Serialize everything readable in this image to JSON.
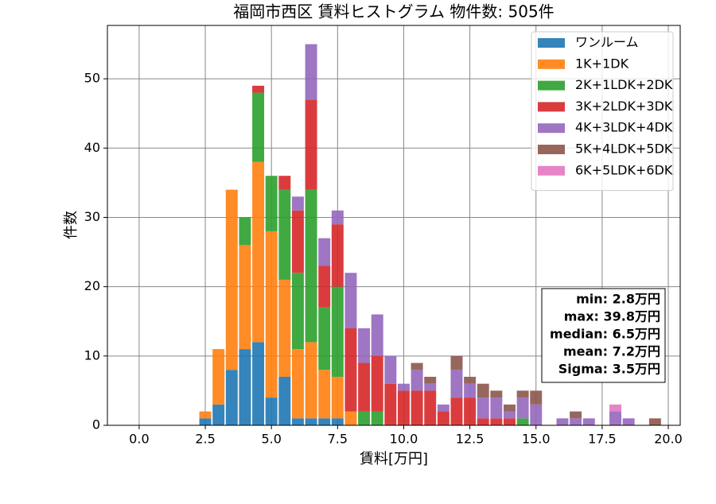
{
  "chart_data": {
    "type": "histogram",
    "stacked": true,
    "title": "福岡市西区 賃料ヒストグラム 物件数: 505件",
    "x_label": "賃料[万円]",
    "y_label": "件数",
    "bins": [
      2.25,
      2.75,
      3.25,
      3.75,
      4.25,
      4.75,
      5.25,
      5.75,
      6.25,
      6.75,
      7.25,
      7.75,
      8.25,
      8.75,
      9.25,
      9.75,
      10.25,
      10.75,
      11.25,
      11.75,
      12.25,
      12.75,
      13.25,
      13.75,
      14.25,
      14.75,
      15.25,
      15.75,
      16.25,
      16.75,
      17.25,
      17.75,
      18.25,
      18.75,
      19.25,
      19.75
    ],
    "series": [
      {
        "name": "ワンルーム",
        "color": "#1f77b4",
        "values": [
          1,
          3,
          8,
          11,
          12,
          4,
          7,
          1,
          1,
          1,
          1,
          0,
          0,
          0,
          0,
          0,
          0,
          0,
          0,
          0,
          0,
          0,
          0,
          0,
          0,
          0,
          0,
          0,
          0,
          0,
          0,
          0,
          0,
          0,
          0
        ]
      },
      {
        "name": "1K+1DK",
        "color": "#ff7f0e",
        "values": [
          1,
          8,
          26,
          15,
          26,
          24,
          14,
          10,
          11,
          7,
          6,
          2,
          0,
          0,
          0,
          0,
          0,
          0,
          0,
          0,
          0,
          0,
          0,
          0,
          0,
          0,
          0,
          0,
          0,
          0,
          0,
          0,
          0,
          0,
          0
        ]
      },
      {
        "name": "2K+1LDK+2DK",
        "color": "#2ca02c",
        "values": [
          0,
          0,
          0,
          4,
          10,
          8,
          13,
          11,
          22,
          9,
          13,
          0,
          2,
          2,
          0,
          0,
          0,
          0,
          0,
          0,
          0,
          0,
          0,
          0,
          1,
          0,
          0,
          0,
          0,
          0,
          0,
          0,
          0,
          0,
          0
        ]
      },
      {
        "name": "3K+2LDK+3DK",
        "color": "#d62728",
        "values": [
          0,
          0,
          0,
          0,
          1,
          0,
          2,
          9,
          13,
          6,
          9,
          12,
          7,
          8,
          6,
          5,
          5,
          5,
          2,
          4,
          4,
          1,
          1,
          1,
          0,
          0,
          0,
          0,
          0,
          0,
          0,
          0,
          0,
          0,
          0
        ]
      },
      {
        "name": "4K+3LDK+4DK",
        "color": "#9467bd",
        "values": [
          0,
          0,
          0,
          0,
          0,
          0,
          0,
          2,
          8,
          4,
          2,
          8,
          5,
          6,
          4,
          1,
          3,
          1,
          1,
          4,
          2,
          3,
          3,
          1,
          3,
          3,
          0,
          1,
          1,
          1,
          0,
          2,
          1,
          0,
          0
        ]
      },
      {
        "name": "5K+4LDK+5DK",
        "color": "#8c564b",
        "values": [
          0,
          0,
          0,
          0,
          0,
          0,
          0,
          0,
          0,
          0,
          0,
          0,
          0,
          0,
          0,
          0,
          1,
          1,
          0,
          2,
          1,
          2,
          1,
          1,
          1,
          2,
          0,
          0,
          1,
          0,
          0,
          0,
          0,
          0,
          1
        ]
      },
      {
        "name": "6K+5LDK+6DK",
        "color": "#e377c2",
        "values": [
          0,
          0,
          0,
          0,
          0,
          0,
          0,
          0,
          0,
          0,
          0,
          0,
          0,
          0,
          0,
          0,
          0,
          0,
          0,
          0,
          0,
          0,
          0,
          0,
          0,
          0,
          0,
          0,
          0,
          0,
          0,
          1,
          0,
          0,
          0
        ]
      }
    ],
    "xlim": [
      -1.2,
      20.45
    ],
    "ylim": [
      0,
      57.7
    ],
    "xticks": [
      {
        "value": 0,
        "label": "0.0"
      },
      2.5,
      {
        "value": 5,
        "label": "5.0"
      },
      7.5,
      {
        "value": 10,
        "label": "10.0"
      },
      12.5,
      {
        "value": 15,
        "label": "15.0"
      },
      17.5,
      {
        "value": 20,
        "label": "20.0"
      }
    ],
    "yticks": [
      0,
      10,
      20,
      30,
      40,
      50
    ],
    "grid": true,
    "legend": "upper right",
    "stats_box": [
      "min: 2.8万円",
      "max: 39.8万円",
      "median: 6.5万円",
      "mean: 7.2万円",
      "Sigma: 3.5万円"
    ]
  }
}
